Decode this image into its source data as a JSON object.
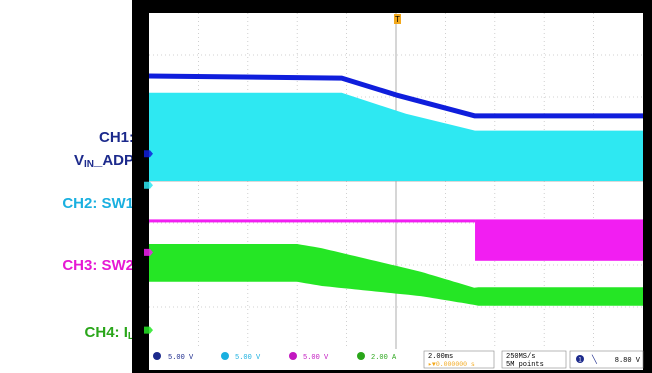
{
  "chart_data": {
    "type": "line",
    "title": "",
    "marker": "T",
    "channels": [
      {
        "id": "CH1",
        "label_prefix": "CH1:",
        "label_main": "V",
        "label_sub": "IN",
        "label_tail": "_ADP",
        "color": "#0f1edc",
        "label_color": "#1c2a8c"
      },
      {
        "id": "CH2",
        "label": "CH2: SW1",
        "color": "#2ee8f2",
        "label_color": "#1ab0e0"
      },
      {
        "id": "CH3",
        "label": "CH3: SW2",
        "color": "#f21ef2",
        "label_color": "#e619d4"
      },
      {
        "id": "CH4",
        "label_prefix": "CH4: ",
        "label_main": "I",
        "label_sub": "L",
        "color": "#25e625",
        "label_color": "#2aa61a"
      }
    ],
    "x_divisions": 10,
    "y_divisions": 8,
    "series": [
      {
        "name": "CH1: VIN_ADP",
        "points": [
          [
            0,
            1.5
          ],
          [
            3.9,
            1.55
          ],
          [
            5.0,
            1.95
          ],
          [
            6.6,
            2.45
          ],
          [
            10,
            2.45
          ]
        ]
      },
      {
        "name": "CH2: SW1",
        "points": [
          [
            0,
            1.9
          ],
          [
            3.9,
            1.9
          ],
          [
            5.2,
            2.4
          ],
          [
            6.6,
            2.8
          ],
          [
            10,
            2.8
          ]
        ]
      },
      {
        "name": "CH4: IL",
        "points": [
          [
            0,
            5.8
          ],
          [
            3.0,
            5.8
          ],
          [
            5.5,
            6.3
          ],
          [
            6.6,
            6.6
          ],
          [
            10,
            6.6
          ]
        ]
      }
    ],
    "status_bar": {
      "ch1_scale": "5.00 V",
      "ch2_scale": "5.00 V",
      "ch3_scale": "5.00 V",
      "ch4_scale": "2.00 A",
      "timebase": "2.00ms",
      "trigger_delay": "▸▼0.000000 s",
      "sample_rate": "250MS/s",
      "record_length": "5M points",
      "trigger_source": "1",
      "trigger_type": "╲",
      "trigger_level": "8.80 V"
    }
  }
}
